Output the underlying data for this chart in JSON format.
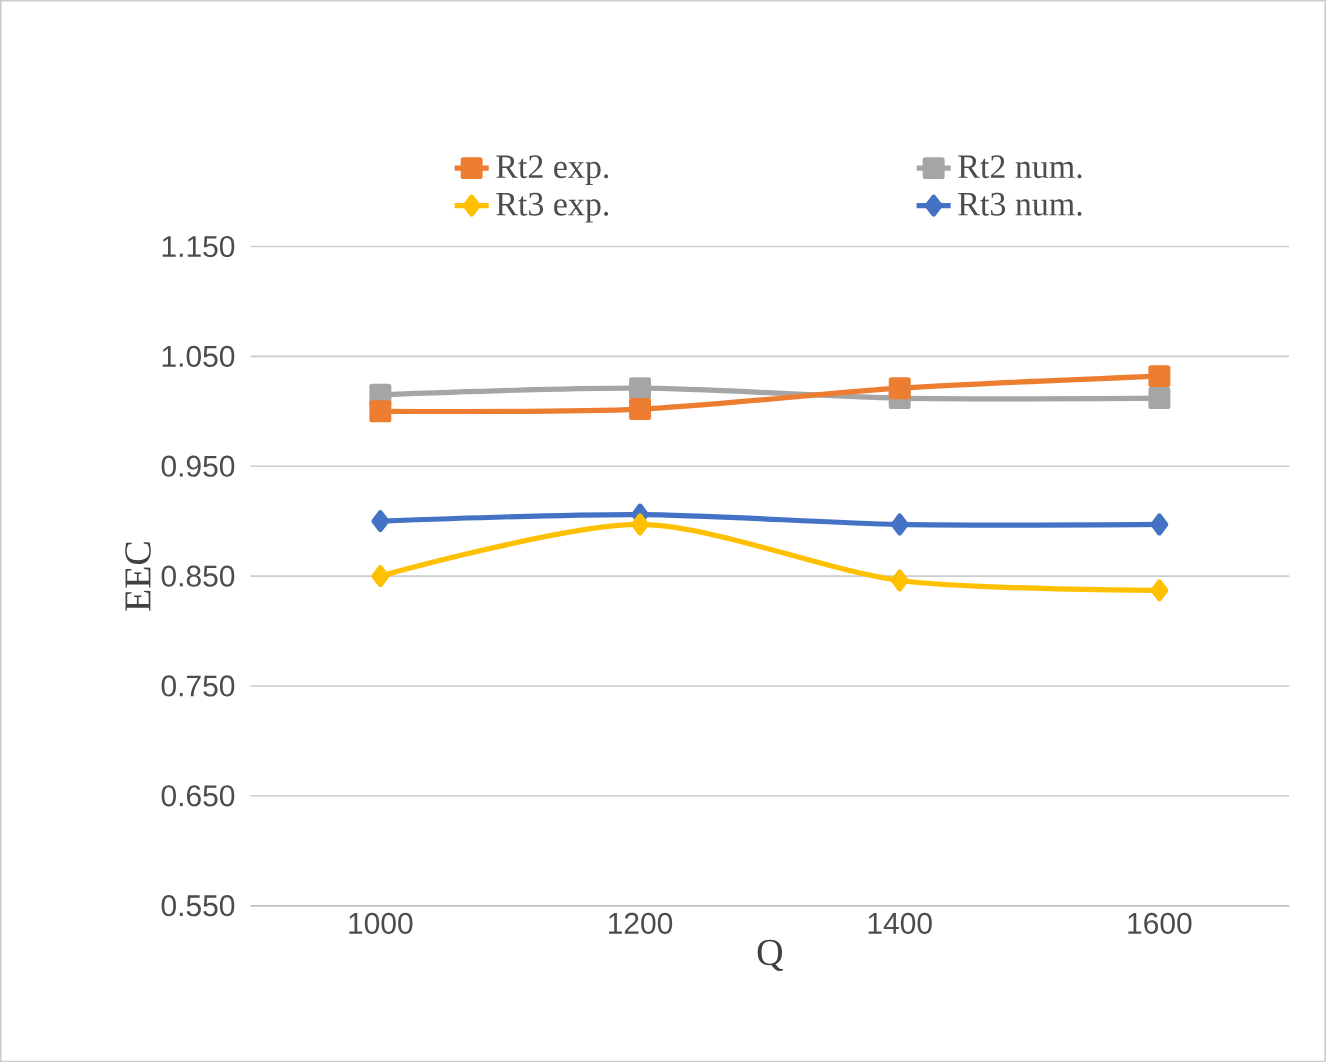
{
  "chart_data": {
    "type": "line",
    "xlabel": "Q",
    "ylabel": "EEC",
    "categories": [
      "1000",
      "1200",
      "1400",
      "1600"
    ],
    "series": [
      {
        "name": "Rt2 exp.",
        "color": "#ed7d31",
        "marker": "square",
        "values": [
          1.0,
          1.002,
          1.021,
          1.032
        ]
      },
      {
        "name": "Rt2 num.",
        "color": "#a5a5a5",
        "marker": "square",
        "values": [
          1.015,
          1.021,
          1.012,
          1.012
        ]
      },
      {
        "name": "Rt3 exp.",
        "color": "#ffc000",
        "marker": "diamond",
        "values": [
          0.85,
          0.897,
          0.846,
          0.837
        ]
      },
      {
        "name": "Rt3 num.",
        "color": "#4472c4",
        "marker": "diamond",
        "values": [
          0.9,
          0.906,
          0.897,
          0.897
        ]
      }
    ],
    "ylim": [
      0.55,
      1.15
    ],
    "yticks": [
      {
        "value": 0.55,
        "label": "0.550"
      },
      {
        "value": 0.65,
        "label": "0.650"
      },
      {
        "value": 0.75,
        "label": "0.750"
      },
      {
        "value": 0.85,
        "label": "0.850"
      },
      {
        "value": 0.95,
        "label": "0.950"
      },
      {
        "value": 1.05,
        "label": "1.050"
      },
      {
        "value": 1.15,
        "label": "1.150"
      }
    ],
    "grid": "y",
    "legend": "top",
    "line_style": "solid"
  }
}
